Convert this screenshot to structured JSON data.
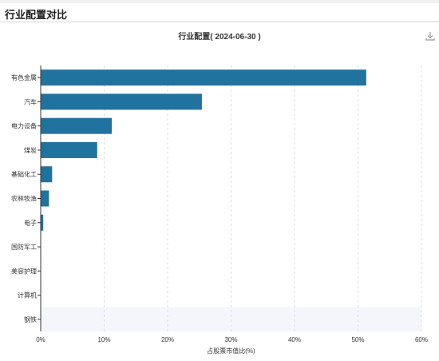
{
  "header": {
    "title": "行业配置对比"
  },
  "toolbar": {
    "download_icon": "download-icon"
  },
  "colors": {
    "bar": "#21739f",
    "grid": "#dddddd",
    "axis": "#333333",
    "highlight": "#f4f6fb"
  },
  "chart_data": {
    "type": "bar",
    "orientation": "horizontal",
    "title": "行业配置( 2024-06-30 )",
    "xlabel": "占股票市值比(%)",
    "ylabel": "",
    "xlim": [
      0,
      60
    ],
    "xticks": [
      "0%",
      "10%",
      "20%",
      "30%",
      "40%",
      "50%",
      "60%"
    ],
    "grid": true,
    "highlighted_category": "钢铁",
    "categories": [
      "有色金属",
      "汽车",
      "电力设备",
      "煤炭",
      "基础化工",
      "农林牧渔",
      "电子",
      "国防军工",
      "美容护理",
      "计算机",
      "钢铁"
    ],
    "values": [
      51.3,
      25.4,
      11.2,
      8.9,
      1.8,
      1.3,
      0.4,
      0,
      0,
      0,
      0
    ]
  }
}
